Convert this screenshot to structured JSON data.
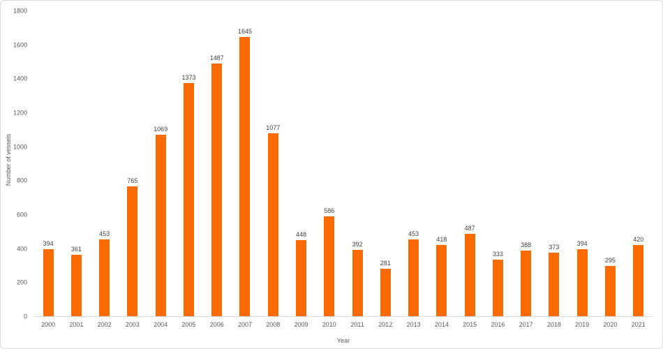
{
  "frame": {
    "background": "#ffffff",
    "border_color": "#dcdcdc"
  },
  "chart_data": {
    "type": "bar",
    "title": "",
    "xlabel": "Year",
    "ylabel": "Number of vessels",
    "categories": [
      "2000",
      "2001",
      "2002",
      "2003",
      "2004",
      "2005",
      "2006",
      "2007",
      "2008",
      "2009",
      "2010",
      "2011",
      "2012",
      "2013",
      "2014",
      "2015",
      "2016",
      "2017",
      "2018",
      "2019",
      "2020",
      "2021"
    ],
    "values": [
      394,
      361,
      453,
      765,
      1069,
      1373,
      1487,
      1645,
      1077,
      448,
      586,
      392,
      281,
      453,
      418,
      487,
      333,
      388,
      373,
      394,
      295,
      420
    ],
    "ylim": [
      0,
      1800
    ],
    "ytick_step": 200,
    "bar_color": "#f96a02",
    "value_label_color": "#404040",
    "axis_text_color": "#595959",
    "grid": false,
    "legend": "none",
    "value_labels": true
  }
}
